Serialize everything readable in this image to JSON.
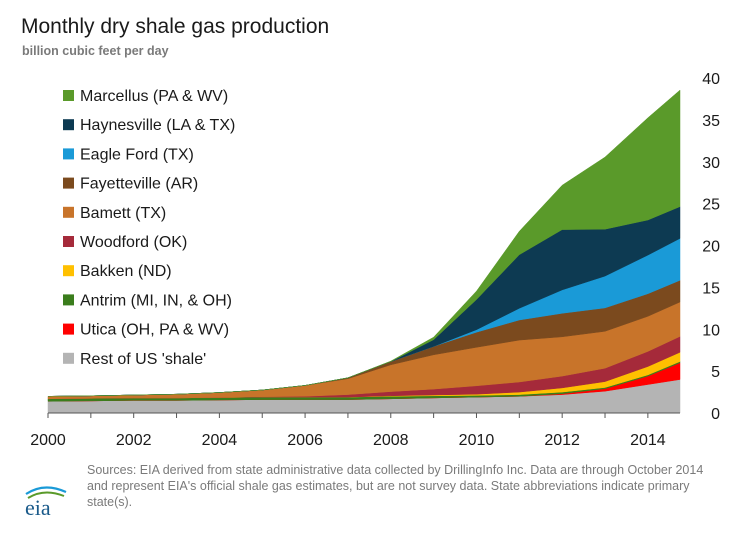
{
  "header": {
    "title": "Monthly dry shale gas production",
    "subtitle": "billion cubic feet per day"
  },
  "source": {
    "text": "Sources: EIA derived from state administrative data collected by DrillingInfo Inc. Data are through October 2014  and represent EIA's official shale gas estimates, but are not survey data. State abbreviations indicate primary state(s).",
    "logo_text": "eia"
  },
  "chart_data": {
    "type": "area",
    "stacked": true,
    "title": "Monthly dry shale gas production",
    "ylabel": "billion cubic feet per day",
    "x": [
      2000,
      2001,
      2002,
      2003,
      2004,
      2005,
      2006,
      2007,
      2008,
      2009,
      2010,
      2011,
      2012,
      2013,
      2014,
      2014.75
    ],
    "xlim": [
      2000,
      2014.75
    ],
    "ylim": [
      0,
      40
    ],
    "x_ticks": [
      2000,
      2002,
      2004,
      2006,
      2008,
      2010,
      2012,
      2014
    ],
    "y_ticks": [
      0,
      5,
      10,
      15,
      20,
      25,
      30,
      35,
      40
    ],
    "y_axis_side": "right",
    "legend_position": "top-left",
    "grid": false,
    "series": [
      {
        "name": "Rest of US 'shale'",
        "color": "#b4b4b4",
        "values": [
          1.4,
          1.45,
          1.5,
          1.5,
          1.55,
          1.6,
          1.6,
          1.6,
          1.7,
          1.8,
          1.9,
          2.0,
          2.2,
          2.6,
          3.4,
          4.0
        ]
      },
      {
        "name": "Utica (OH, PA & WV)",
        "color": "#ff0000",
        "values": [
          0,
          0,
          0,
          0,
          0,
          0,
          0,
          0,
          0,
          0,
          0,
          0,
          0.1,
          0.3,
          1.0,
          2.0
        ]
      },
      {
        "name": "Antrim (MI, IN, & OH)",
        "color": "#3a7d1c",
        "values": [
          0.3,
          0.3,
          0.3,
          0.3,
          0.3,
          0.3,
          0.3,
          0.3,
          0.3,
          0.25,
          0.2,
          0.2,
          0.2,
          0.15,
          0.15,
          0.15
        ]
      },
      {
        "name": "Bakken (ND)",
        "color": "#ffc000",
        "values": [
          0,
          0,
          0,
          0,
          0,
          0,
          0,
          0,
          0.05,
          0.1,
          0.15,
          0.3,
          0.5,
          0.7,
          1.0,
          1.1
        ]
      },
      {
        "name": "Woodford (OK)",
        "color": "#a52a3a",
        "values": [
          0,
          0,
          0,
          0,
          0,
          0.05,
          0.1,
          0.3,
          0.5,
          0.7,
          1.0,
          1.2,
          1.4,
          1.6,
          1.8,
          1.9
        ]
      },
      {
        "name": "Bamett (TX)",
        "color": "#c8742a",
        "values": [
          0.3,
          0.3,
          0.35,
          0.45,
          0.6,
          0.8,
          1.3,
          1.9,
          3.2,
          4.1,
          4.6,
          5.0,
          4.7,
          4.4,
          4.2,
          4.1
        ]
      },
      {
        "name": "Fayetteville (AR)",
        "color": "#7b4a1e",
        "values": [
          0,
          0,
          0,
          0,
          0,
          0,
          0,
          0.1,
          0.4,
          1.0,
          1.8,
          2.4,
          2.8,
          2.8,
          2.7,
          2.6
        ]
      },
      {
        "name": "Eagle Ford (TX)",
        "color": "#1a9ad7",
        "values": [
          0,
          0,
          0,
          0,
          0,
          0,
          0,
          0,
          0,
          0,
          0.3,
          1.4,
          2.8,
          3.8,
          4.6,
          5.0
        ]
      },
      {
        "name": "Haynesville (LA & TX)",
        "color": "#0d3a52",
        "values": [
          0,
          0,
          0,
          0,
          0,
          0,
          0,
          0,
          0,
          0.8,
          3.6,
          6.4,
          7.2,
          5.6,
          4.2,
          3.8
        ]
      },
      {
        "name": "Marcellus (PA & WV)",
        "color": "#5a9a2a",
        "values": [
          0,
          0,
          0,
          0,
          0,
          0,
          0,
          0,
          0.05,
          0.3,
          1.0,
          2.8,
          5.3,
          8.6,
          12.2,
          13.9
        ]
      }
    ]
  }
}
